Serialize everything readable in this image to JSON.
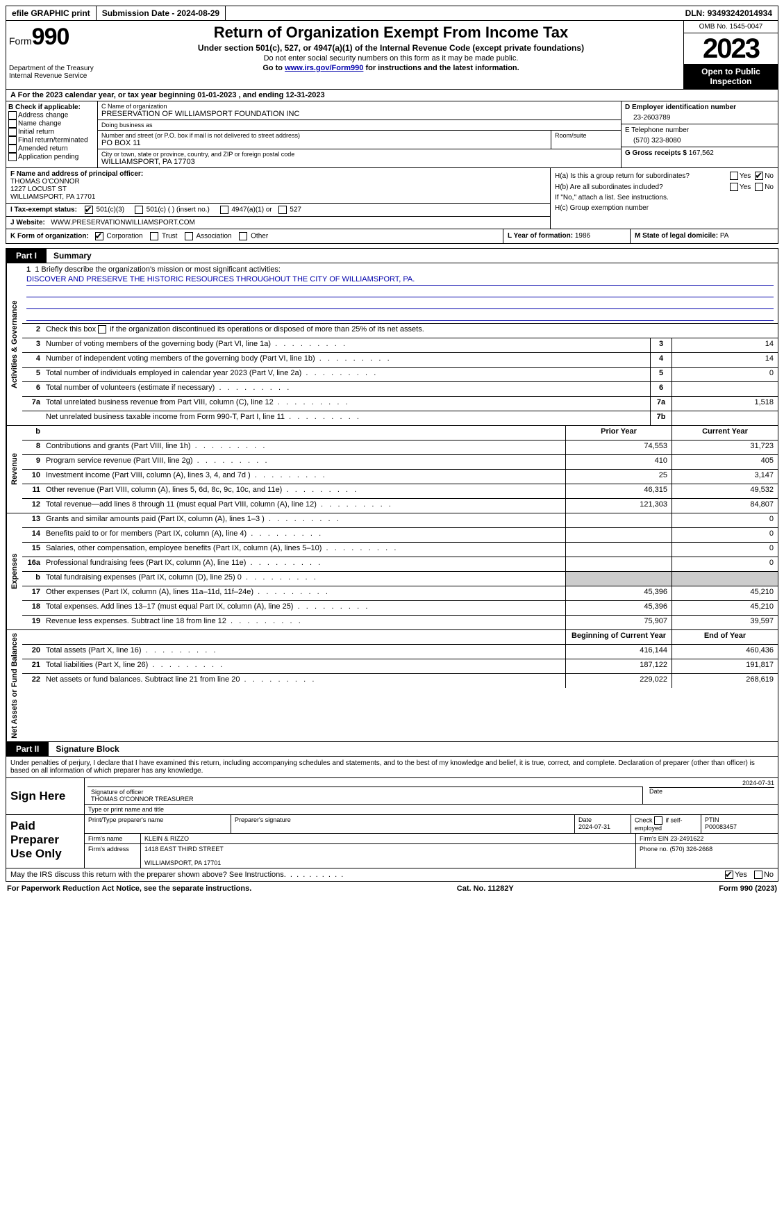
{
  "topbar": {
    "efile": "efile GRAPHIC print",
    "sub_label": "Submission Date - ",
    "sub_date": "2024-08-29",
    "dln_label": "DLN: ",
    "dln": "93493242014934"
  },
  "header": {
    "form_word": "Form",
    "form_no": "990",
    "dept": "Department of the Treasury\nInternal Revenue Service",
    "title": "Return of Organization Exempt From Income Tax",
    "sub1": "Under section 501(c), 527, or 4947(a)(1) of the Internal Revenue Code (except private foundations)",
    "sub2": "Do not enter social security numbers on this form as it may be made public.",
    "sub3_pre": "Go to ",
    "sub3_link": "www.irs.gov/Form990",
    "sub3_post": " for instructions and the latest information.",
    "omb": "OMB No. 1545-0047",
    "year": "2023",
    "inspect": "Open to Public Inspection"
  },
  "row_a": "For the 2023 calendar year, or tax year beginning 01-01-2023   , and ending 12-31-2023",
  "box_b": {
    "title": "B Check if applicable:",
    "items": [
      "Address change",
      "Name change",
      "Initial return",
      "Final return/terminated",
      "Amended return",
      "Application pending"
    ]
  },
  "box_c": {
    "name_lbl": "C Name of organization",
    "name": "PRESERVATION OF WILLIAMSPORT FOUNDATION INC",
    "dba_lbl": "Doing business as",
    "dba": "",
    "street_lbl": "Number and street (or P.O. box if mail is not delivered to street address)",
    "street": "PO BOX 11",
    "room_lbl": "Room/suite",
    "room": "",
    "city_lbl": "City or town, state or province, country, and ZIP or foreign postal code",
    "city": "WILLIAMSPORT, PA  17703"
  },
  "box_d": {
    "ein_lbl": "D Employer identification number",
    "ein": "23-2603789",
    "tel_lbl": "E Telephone number",
    "tel": "(570) 323-8080",
    "gross_lbl": "G Gross receipts $ ",
    "gross": "167,562"
  },
  "box_f": {
    "lbl": "F  Name and address of principal officer:",
    "name": "THOMAS O'CONNOR",
    "street": "1227 LOCUST ST",
    "city": "WILLIAMSPORT, PA  17701"
  },
  "box_h": {
    "ha": "H(a)  Is this a group return for subordinates?",
    "hb": "H(b)  Are all subordinates included?",
    "hb_note": "If \"No,\" attach a list. See instructions.",
    "hc": "H(c)  Group exemption number",
    "yes": "Yes",
    "no": "No"
  },
  "box_i": {
    "lbl": "I    Tax-exempt status:",
    "o1": "501(c)(3)",
    "o2": "501(c) (  ) (insert no.)",
    "o3": "4947(a)(1) or",
    "o4": "527"
  },
  "box_j": {
    "lbl": "J    Website:",
    "val": "WWW.PRESERVATIONWILLIAMSPORT.COM"
  },
  "box_k": {
    "lbl": "K Form of organization:",
    "o1": "Corporation",
    "o2": "Trust",
    "o3": "Association",
    "o4": "Other"
  },
  "box_l": {
    "lbl": "L Year of formation: ",
    "val": "1986"
  },
  "box_m": {
    "lbl": "M State of legal domicile: ",
    "val": "PA"
  },
  "part1": {
    "num": "Part I",
    "title": "Summary"
  },
  "mission": {
    "lbl": "1   Briefly describe the organization's mission or most significant activities:",
    "text": "DISCOVER AND PRESERVE THE HISTORIC RESOURCES THROUGHOUT THE CITY OF WILLIAMSPORT, PA."
  },
  "gov": {
    "l2": "Check this box        if the organization discontinued its operations or disposed of more than 25% of its net assets.",
    "rows": [
      {
        "n": "3",
        "d": "Number of voting members of the governing body (Part VI, line 1a)",
        "nb": "3",
        "v": "14"
      },
      {
        "n": "4",
        "d": "Number of independent voting members of the governing body (Part VI, line 1b)",
        "nb": "4",
        "v": "14"
      },
      {
        "n": "5",
        "d": "Total number of individuals employed in calendar year 2023 (Part V, line 2a)",
        "nb": "5",
        "v": "0"
      },
      {
        "n": "6",
        "d": "Total number of volunteers (estimate if necessary)",
        "nb": "6",
        "v": ""
      },
      {
        "n": "7a",
        "d": "Total unrelated business revenue from Part VIII, column (C), line 12",
        "nb": "7a",
        "v": "1,518"
      },
      {
        "n": "",
        "d": "Net unrelated business taxable income from Form 990-T, Part I, line 11",
        "nb": "7b",
        "v": ""
      }
    ]
  },
  "col_hdr": {
    "b": "b",
    "prior": "Prior Year",
    "curr": "Current Year"
  },
  "revenue": [
    {
      "n": "8",
      "d": "Contributions and grants (Part VIII, line 1h)",
      "p": "74,553",
      "c": "31,723"
    },
    {
      "n": "9",
      "d": "Program service revenue (Part VIII, line 2g)",
      "p": "410",
      "c": "405"
    },
    {
      "n": "10",
      "d": "Investment income (Part VIII, column (A), lines 3, 4, and 7d )",
      "p": "25",
      "c": "3,147"
    },
    {
      "n": "11",
      "d": "Other revenue (Part VIII, column (A), lines 5, 6d, 8c, 9c, 10c, and 11e)",
      "p": "46,315",
      "c": "49,532"
    },
    {
      "n": "12",
      "d": "Total revenue—add lines 8 through 11 (must equal Part VIII, column (A), line 12)",
      "p": "121,303",
      "c": "84,807"
    }
  ],
  "expenses": [
    {
      "n": "13",
      "d": "Grants and similar amounts paid (Part IX, column (A), lines 1–3 )",
      "p": "",
      "c": "0"
    },
    {
      "n": "14",
      "d": "Benefits paid to or for members (Part IX, column (A), line 4)",
      "p": "",
      "c": "0"
    },
    {
      "n": "15",
      "d": "Salaries, other compensation, employee benefits (Part IX, column (A), lines 5–10)",
      "p": "",
      "c": "0"
    },
    {
      "n": "16a",
      "d": "Professional fundraising fees (Part IX, column (A), line 11e)",
      "p": "",
      "c": "0"
    },
    {
      "n": "b",
      "d": "Total fundraising expenses (Part IX, column (D), line 25) 0",
      "p": "grey",
      "c": "grey"
    },
    {
      "n": "17",
      "d": "Other expenses (Part IX, column (A), lines 11a–11d, 11f–24e)",
      "p": "45,396",
      "c": "45,210"
    },
    {
      "n": "18",
      "d": "Total expenses. Add lines 13–17 (must equal Part IX, column (A), line 25)",
      "p": "45,396",
      "c": "45,210"
    },
    {
      "n": "19",
      "d": "Revenue less expenses. Subtract line 18 from line 12",
      "p": "75,907",
      "c": "39,597"
    }
  ],
  "net_hdr": {
    "beg": "Beginning of Current Year",
    "end": "End of Year"
  },
  "net": [
    {
      "n": "20",
      "d": "Total assets (Part X, line 16)",
      "p": "416,144",
      "c": "460,436"
    },
    {
      "n": "21",
      "d": "Total liabilities (Part X, line 26)",
      "p": "187,122",
      "c": "191,817"
    },
    {
      "n": "22",
      "d": "Net assets or fund balances. Subtract line 21 from line 20",
      "p": "229,022",
      "c": "268,619"
    }
  ],
  "part2": {
    "num": "Part II",
    "title": "Signature Block"
  },
  "sig_text": "Under penalties of perjury, I declare that I have examined this return, including accompanying schedules and statements, and to the best of my knowledge and belief, it is true, correct, and complete. Declaration of preparer (other than officer) is based on all information of which preparer has any knowledge.",
  "sign": {
    "lab": "Sign Here",
    "date": "2024-07-31",
    "sig_lbl": "Signature of officer",
    "name": "THOMAS O'CONNOR  TREASURER",
    "type_lbl": "Type or print name and title",
    "date_lbl": "Date"
  },
  "prep": {
    "lab": "Paid Preparer Use Only",
    "h1": "Print/Type preparer's name",
    "h2": "Preparer's signature",
    "h3": "Date",
    "h3v": "2024-07-31",
    "h4": "Check         if self-employed",
    "h5": "PTIN",
    "h5v": "P00083457",
    "f1": "Firm's name",
    "f1v": "KLEIN & RIZZO",
    "f2": "Firm's EIN",
    "f2v": "23-2491622",
    "a1": "Firm's address",
    "a1v": "1418 EAST THIRD STREET",
    "a2": "WILLIAMSPORT, PA  17701",
    "p1": "Phone no.",
    "p1v": "(570) 326-2668"
  },
  "may": {
    "q": "May the IRS discuss this return with the preparer shown above? See Instructions.",
    "yes": "Yes",
    "no": "No"
  },
  "footer": {
    "l": "For Paperwork Reduction Act Notice, see the separate instructions.",
    "c": "Cat. No. 11282Y",
    "r": "Form 990 (2023)"
  },
  "vtabs": {
    "gov": "Activities & Governance",
    "rev": "Revenue",
    "exp": "Expenses",
    "net": "Net Assets or Fund Balances"
  }
}
